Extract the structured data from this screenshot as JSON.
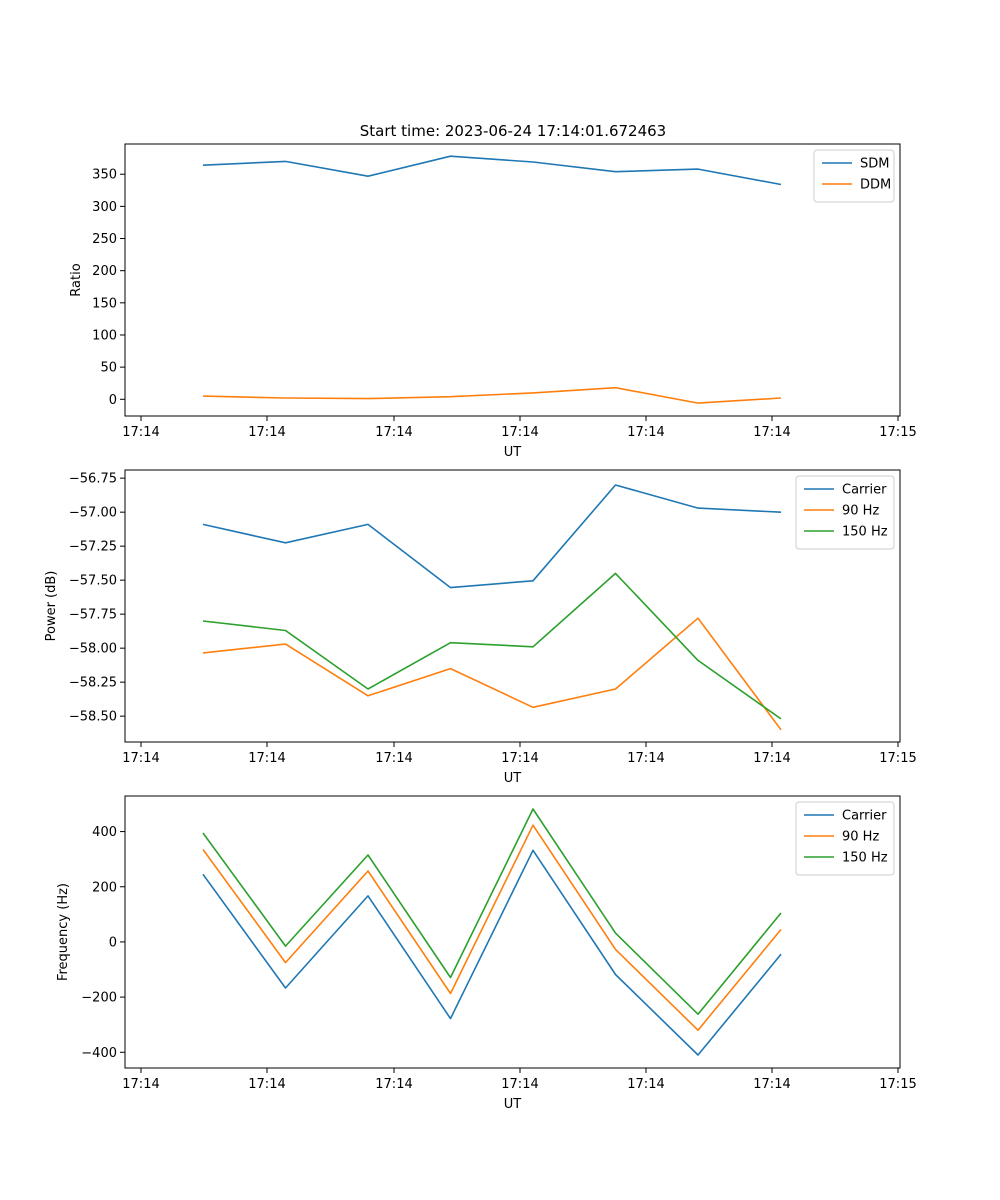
{
  "figure_title": "Start time: 2023-06-24 17:14:01.672463",
  "chart_data": [
    {
      "type": "line",
      "ylabel": "Ratio",
      "xlabel": "UT",
      "x_tick_labels": [
        "17:14",
        "17:14",
        "17:14",
        "17:14",
        "17:14",
        "17:14",
        "17:15"
      ],
      "y_ticks": [
        0,
        50,
        100,
        150,
        200,
        250,
        300,
        350
      ],
      "y_tick_labels": [
        "0",
        "50",
        "100",
        "150",
        "200",
        "250",
        "300",
        "350"
      ],
      "ylim": [
        -26,
        397
      ],
      "legend_position": "upper right",
      "series": [
        {
          "name": "SDM",
          "color": "#1f77b4",
          "values": [
            364,
            370,
            347,
            378,
            369,
            354,
            358,
            334
          ]
        },
        {
          "name": "DDM",
          "color": "#ff7f0e",
          "values": [
            5,
            2,
            1,
            4,
            10,
            18,
            -6,
            2
          ]
        }
      ]
    },
    {
      "type": "line",
      "ylabel": "Power (dB)",
      "xlabel": "UT",
      "x_tick_labels": [
        "17:14",
        "17:14",
        "17:14",
        "17:14",
        "17:14",
        "17:14",
        "17:15"
      ],
      "y_ticks": [
        -58.5,
        -58.25,
        -58.0,
        -57.75,
        -57.5,
        -57.25,
        -57.0,
        -56.75
      ],
      "y_tick_labels": [
        "−58.50",
        "−58.25",
        "−58.00",
        "−57.75",
        "−57.50",
        "−57.25",
        "−57.00",
        "−56.75"
      ],
      "ylim": [
        -58.69,
        -56.69
      ],
      "legend_position": "upper right",
      "series": [
        {
          "name": "Carrier",
          "color": "#1f77b4",
          "values": [
            -57.09,
            -57.225,
            -57.09,
            -57.555,
            -57.505,
            -56.8,
            -56.97,
            -57.0
          ]
        },
        {
          "name": "90 Hz",
          "color": "#ff7f0e",
          "values": [
            -58.035,
            -57.97,
            -58.35,
            -58.15,
            -58.435,
            -58.3,
            -57.78,
            -58.6
          ]
        },
        {
          "name": "150 Hz",
          "color": "#2ca02c",
          "values": [
            -57.8,
            -57.87,
            -58.3,
            -57.96,
            -57.99,
            -57.45,
            -58.09,
            -58.52
          ]
        }
      ]
    },
    {
      "type": "line",
      "ylabel": "Frequency (Hz)",
      "xlabel": "UT",
      "x_tick_labels": [
        "17:14",
        "17:14",
        "17:14",
        "17:14",
        "17:14",
        "17:14",
        "17:15"
      ],
      "y_ticks": [
        -400,
        -200,
        0,
        200,
        400
      ],
      "y_tick_labels": [
        "−400",
        "−200",
        "0",
        "200",
        "400"
      ],
      "ylim": [
        -457,
        529
      ],
      "legend_position": "upper right",
      "series": [
        {
          "name": "Carrier",
          "color": "#1f77b4",
          "values": [
            245,
            -167,
            167,
            -278,
            332,
            -118,
            -410,
            -45
          ]
        },
        {
          "name": "90 Hz",
          "color": "#ff7f0e",
          "values": [
            335,
            -75,
            257,
            -187,
            423,
            -27,
            -320,
            45
          ]
        },
        {
          "name": "150 Hz",
          "color": "#2ca02c",
          "values": [
            395,
            -15,
            315,
            -129,
            482,
            32,
            -262,
            105
          ]
        }
      ]
    }
  ]
}
